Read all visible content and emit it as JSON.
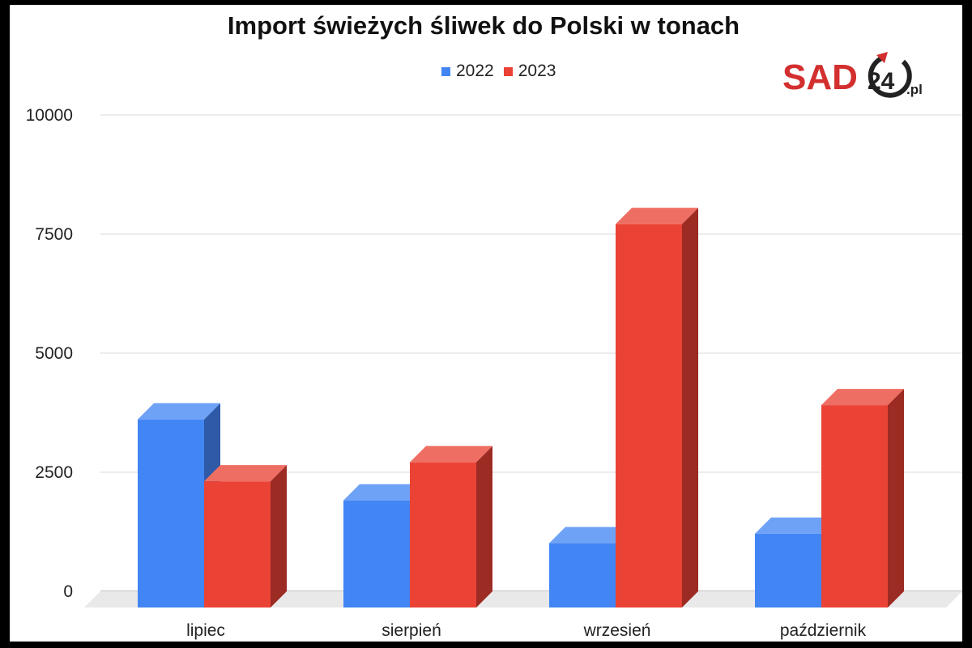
{
  "chart_data": {
    "type": "bar",
    "title": "Import świeżych śliwek do Polski w tonach",
    "categories": [
      "lipiec",
      "sierpień",
      "wrzesień",
      "październik"
    ],
    "series": [
      {
        "name": "2022",
        "values": [
          3950,
          2250,
          1350,
          1550
        ],
        "color": "#4285f4",
        "side_color": "#2e5aa8",
        "top_color": "#6ea2f7"
      },
      {
        "name": "2023",
        "values": [
          2650,
          3050,
          8050,
          4250
        ],
        "color": "#ea4335",
        "side_color": "#9c2b23",
        "top_color": "#ef6e63"
      }
    ],
    "yticks": [
      "0",
      "2500",
      "5000",
      "7500",
      "10000"
    ],
    "ylim": [
      0,
      10000
    ],
    "grid": true,
    "legend_position": "top-center",
    "style": "3d-bar"
  },
  "logo": {
    "main": "SAD",
    "number": "24",
    "suffix": ".pl",
    "color": "#d32f2f",
    "ring_color": "#222222"
  }
}
